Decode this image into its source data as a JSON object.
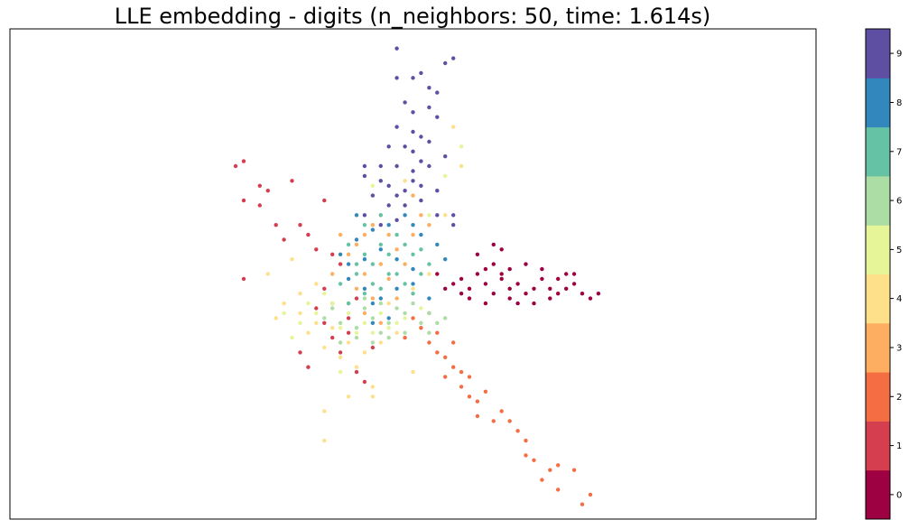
{
  "chart_data": {
    "type": "scatter",
    "title": "LLE embedding - digits (n_neighbors: 50, time: 1.614s)",
    "xlabel": "",
    "ylabel": "",
    "xlim": [
      0,
      1
    ],
    "ylim": [
      0,
      1
    ],
    "grid": false,
    "x_ticks_visible": false,
    "y_ticks_visible": false,
    "colormap": "Spectral",
    "colorbar": {
      "ticks": [
        "0",
        "1",
        "2",
        "3",
        "4",
        "5",
        "6",
        "7",
        "8",
        "9"
      ],
      "colors": [
        "#9e0142",
        "#d53e4f",
        "#f46d43",
        "#fdae61",
        "#fee08b",
        "#e6f598",
        "#abdda4",
        "#66c2a5",
        "#3288bd",
        "#5e4fa2"
      ]
    },
    "series": [
      {
        "digit": 0,
        "color": "#9e0142",
        "points": [
          [
            0.55,
            0.48
          ],
          [
            0.56,
            0.49
          ],
          [
            0.57,
            0.47
          ],
          [
            0.58,
            0.5
          ],
          [
            0.59,
            0.48
          ],
          [
            0.6,
            0.46
          ],
          [
            0.61,
            0.49
          ],
          [
            0.62,
            0.47
          ],
          [
            0.63,
            0.48
          ],
          [
            0.64,
            0.46
          ],
          [
            0.65,
            0.47
          ],
          [
            0.66,
            0.49
          ],
          [
            0.67,
            0.47
          ],
          [
            0.68,
            0.46
          ],
          [
            0.69,
            0.47
          ],
          [
            0.7,
            0.48
          ],
          [
            0.71,
            0.46
          ],
          [
            0.72,
            0.45
          ],
          [
            0.54,
            0.47
          ],
          [
            0.53,
            0.5
          ],
          [
            0.6,
            0.52
          ],
          [
            0.62,
            0.51
          ],
          [
            0.58,
            0.54
          ],
          [
            0.6,
            0.56
          ],
          [
            0.61,
            0.55
          ],
          [
            0.63,
            0.44
          ],
          [
            0.65,
            0.44
          ],
          [
            0.67,
            0.45
          ],
          [
            0.69,
            0.5
          ],
          [
            0.64,
            0.52
          ],
          [
            0.57,
            0.45
          ],
          [
            0.59,
            0.44
          ],
          [
            0.56,
            0.46
          ],
          [
            0.62,
            0.45
          ],
          [
            0.66,
            0.51
          ],
          [
            0.68,
            0.49
          ],
          [
            0.7,
            0.5
          ],
          [
            0.73,
            0.46
          ],
          [
            0.59,
            0.51
          ],
          [
            0.61,
            0.5
          ]
        ]
      },
      {
        "digit": 1,
        "color": "#d53e4f",
        "points": [
          [
            0.28,
            0.72
          ],
          [
            0.29,
            0.73
          ],
          [
            0.31,
            0.68
          ],
          [
            0.32,
            0.67
          ],
          [
            0.29,
            0.65
          ],
          [
            0.35,
            0.69
          ],
          [
            0.39,
            0.65
          ],
          [
            0.33,
            0.6
          ],
          [
            0.36,
            0.6
          ],
          [
            0.34,
            0.57
          ],
          [
            0.37,
            0.58
          ],
          [
            0.38,
            0.55
          ],
          [
            0.4,
            0.54
          ],
          [
            0.41,
            0.52
          ],
          [
            0.39,
            0.47
          ],
          [
            0.4,
            0.44
          ],
          [
            0.42,
            0.41
          ],
          [
            0.4,
            0.37
          ],
          [
            0.41,
            0.34
          ],
          [
            0.43,
            0.3
          ],
          [
            0.44,
            0.28
          ],
          [
            0.36,
            0.34
          ],
          [
            0.37,
            0.31
          ],
          [
            0.29,
            0.49
          ],
          [
            0.31,
            0.64
          ],
          [
            0.38,
            0.43
          ],
          [
            0.43,
            0.45
          ],
          [
            0.42,
            0.38
          ],
          [
            0.45,
            0.35
          ],
          [
            0.39,
            0.4
          ]
        ]
      },
      {
        "digit": 2,
        "color": "#f46d43",
        "points": [
          [
            0.52,
            0.36
          ],
          [
            0.53,
            0.34
          ],
          [
            0.54,
            0.33
          ],
          [
            0.55,
            0.31
          ],
          [
            0.56,
            0.3
          ],
          [
            0.57,
            0.29
          ],
          [
            0.56,
            0.27
          ],
          [
            0.57,
            0.25
          ],
          [
            0.58,
            0.24
          ],
          [
            0.58,
            0.21
          ],
          [
            0.6,
            0.2
          ],
          [
            0.61,
            0.22
          ],
          [
            0.62,
            0.2
          ],
          [
            0.63,
            0.18
          ],
          [
            0.64,
            0.16
          ],
          [
            0.64,
            0.13
          ],
          [
            0.65,
            0.12
          ],
          [
            0.67,
            0.1
          ],
          [
            0.66,
            0.08
          ],
          [
            0.68,
            0.06
          ],
          [
            0.68,
            0.11
          ],
          [
            0.7,
            0.1
          ],
          [
            0.72,
            0.05
          ],
          [
            0.71,
            0.03
          ],
          [
            0.51,
            0.39
          ],
          [
            0.53,
            0.38
          ],
          [
            0.55,
            0.36
          ],
          [
            0.54,
            0.29
          ],
          [
            0.59,
            0.26
          ],
          [
            0.5,
            0.41
          ],
          [
            0.52,
            0.42
          ],
          [
            0.49,
            0.37
          ]
        ]
      },
      {
        "digit": 3,
        "color": "#fdae61",
        "points": [
          [
            0.42,
            0.54
          ],
          [
            0.43,
            0.56
          ],
          [
            0.44,
            0.58
          ],
          [
            0.45,
            0.6
          ],
          [
            0.46,
            0.62
          ],
          [
            0.47,
            0.58
          ],
          [
            0.48,
            0.55
          ],
          [
            0.49,
            0.64
          ],
          [
            0.5,
            0.66
          ],
          [
            0.51,
            0.62
          ],
          [
            0.46,
            0.52
          ],
          [
            0.44,
            0.5
          ],
          [
            0.43,
            0.47
          ],
          [
            0.45,
            0.45
          ],
          [
            0.47,
            0.49
          ],
          [
            0.48,
            0.45
          ],
          [
            0.42,
            0.44
          ],
          [
            0.44,
            0.42
          ],
          [
            0.46,
            0.4
          ],
          [
            0.49,
            0.52
          ],
          [
            0.5,
            0.58
          ],
          [
            0.52,
            0.6
          ],
          [
            0.4,
            0.5
          ],
          [
            0.41,
            0.58
          ]
        ]
      },
      {
        "digit": 4,
        "color": "#fee08b",
        "points": [
          [
            0.34,
            0.44
          ],
          [
            0.36,
            0.42
          ],
          [
            0.38,
            0.4
          ],
          [
            0.4,
            0.39
          ],
          [
            0.42,
            0.36
          ],
          [
            0.44,
            0.34
          ],
          [
            0.46,
            0.36
          ],
          [
            0.48,
            0.38
          ],
          [
            0.36,
            0.46
          ],
          [
            0.38,
            0.48
          ],
          [
            0.37,
            0.38
          ],
          [
            0.39,
            0.35
          ],
          [
            0.41,
            0.33
          ],
          [
            0.43,
            0.31
          ],
          [
            0.45,
            0.27
          ],
          [
            0.42,
            0.25
          ],
          [
            0.39,
            0.22
          ],
          [
            0.45,
            0.25
          ],
          [
            0.5,
            0.47
          ],
          [
            0.52,
            0.5
          ],
          [
            0.54,
            0.62
          ],
          [
            0.56,
            0.72
          ],
          [
            0.55,
            0.8
          ],
          [
            0.49,
            0.69
          ],
          [
            0.33,
            0.41
          ],
          [
            0.32,
            0.5
          ],
          [
            0.35,
            0.53
          ],
          [
            0.39,
            0.16
          ],
          [
            0.47,
            0.44
          ],
          [
            0.5,
            0.3
          ]
        ]
      },
      {
        "digit": 5,
        "color": "#e6f598",
        "points": [
          [
            0.36,
            0.4
          ],
          [
            0.38,
            0.42
          ],
          [
            0.4,
            0.44
          ],
          [
            0.42,
            0.42
          ],
          [
            0.44,
            0.4
          ],
          [
            0.46,
            0.42
          ],
          [
            0.48,
            0.4
          ],
          [
            0.37,
            0.44
          ],
          [
            0.39,
            0.46
          ],
          [
            0.41,
            0.39
          ],
          [
            0.43,
            0.38
          ],
          [
            0.45,
            0.38
          ],
          [
            0.47,
            0.39
          ],
          [
            0.49,
            0.41
          ],
          [
            0.51,
            0.43
          ],
          [
            0.35,
            0.37
          ],
          [
            0.34,
            0.42
          ],
          [
            0.52,
            0.62
          ],
          [
            0.54,
            0.7
          ],
          [
            0.56,
            0.76
          ],
          [
            0.48,
            0.72
          ],
          [
            0.45,
            0.68
          ],
          [
            0.5,
            0.75
          ],
          [
            0.41,
            0.3
          ]
        ]
      },
      {
        "digit": 6,
        "color": "#abdda4",
        "points": [
          [
            0.39,
            0.41
          ],
          [
            0.41,
            0.4
          ],
          [
            0.43,
            0.39
          ],
          [
            0.45,
            0.41
          ],
          [
            0.47,
            0.4
          ],
          [
            0.49,
            0.42
          ],
          [
            0.51,
            0.4
          ],
          [
            0.52,
            0.42
          ],
          [
            0.4,
            0.43
          ],
          [
            0.42,
            0.44
          ],
          [
            0.44,
            0.43
          ],
          [
            0.46,
            0.44
          ],
          [
            0.48,
            0.43
          ],
          [
            0.5,
            0.44
          ],
          [
            0.53,
            0.4
          ],
          [
            0.43,
            0.37
          ],
          [
            0.45,
            0.36
          ],
          [
            0.47,
            0.37
          ],
          [
            0.49,
            0.38
          ],
          [
            0.41,
            0.36
          ],
          [
            0.52,
            0.38
          ],
          [
            0.54,
            0.41
          ],
          [
            0.44,
            0.45
          ],
          [
            0.46,
            0.38
          ]
        ]
      },
      {
        "digit": 7,
        "color": "#66c2a5",
        "points": [
          [
            0.41,
            0.48
          ],
          [
            0.43,
            0.5
          ],
          [
            0.45,
            0.52
          ],
          [
            0.47,
            0.5
          ],
          [
            0.49,
            0.48
          ],
          [
            0.51,
            0.5
          ],
          [
            0.44,
            0.54
          ],
          [
            0.46,
            0.56
          ],
          [
            0.48,
            0.58
          ],
          [
            0.42,
            0.56
          ],
          [
            0.44,
            0.6
          ],
          [
            0.46,
            0.62
          ],
          [
            0.5,
            0.54
          ],
          [
            0.52,
            0.52
          ],
          [
            0.42,
            0.44
          ],
          [
            0.44,
            0.46
          ],
          [
            0.46,
            0.47
          ],
          [
            0.48,
            0.5
          ],
          [
            0.5,
            0.46
          ],
          [
            0.43,
            0.52
          ],
          [
            0.47,
            0.54
          ],
          [
            0.49,
            0.56
          ],
          [
            0.51,
            0.55
          ],
          [
            0.45,
            0.48
          ]
        ]
      },
      {
        "digit": 8,
        "color": "#3288bd",
        "points": [
          [
            0.42,
            0.52
          ],
          [
            0.44,
            0.53
          ],
          [
            0.46,
            0.55
          ],
          [
            0.48,
            0.53
          ],
          [
            0.5,
            0.51
          ],
          [
            0.43,
            0.57
          ],
          [
            0.45,
            0.59
          ],
          [
            0.47,
            0.6
          ],
          [
            0.49,
            0.62
          ],
          [
            0.51,
            0.58
          ],
          [
            0.42,
            0.49
          ],
          [
            0.44,
            0.47
          ],
          [
            0.46,
            0.45
          ],
          [
            0.48,
            0.47
          ],
          [
            0.5,
            0.48
          ],
          [
            0.53,
            0.56
          ],
          [
            0.41,
            0.54
          ],
          [
            0.45,
            0.4
          ],
          [
            0.47,
            0.41
          ],
          [
            0.52,
            0.45
          ],
          [
            0.54,
            0.53
          ],
          [
            0.43,
            0.62
          ],
          [
            0.45,
            0.44
          ],
          [
            0.5,
            0.6
          ]
        ]
      },
      {
        "digit": 9,
        "color": "#5e4fa2",
        "points": [
          [
            0.48,
            0.96
          ],
          [
            0.51,
            0.91
          ],
          [
            0.48,
            0.9
          ],
          [
            0.5,
            0.9
          ],
          [
            0.55,
            0.94
          ],
          [
            0.54,
            0.93
          ],
          [
            0.52,
            0.88
          ],
          [
            0.49,
            0.85
          ],
          [
            0.5,
            0.83
          ],
          [
            0.52,
            0.84
          ],
          [
            0.53,
            0.82
          ],
          [
            0.48,
            0.8
          ],
          [
            0.5,
            0.79
          ],
          [
            0.51,
            0.78
          ],
          [
            0.47,
            0.76
          ],
          [
            0.49,
            0.76
          ],
          [
            0.5,
            0.75
          ],
          [
            0.52,
            0.72
          ],
          [
            0.46,
            0.72
          ],
          [
            0.48,
            0.72
          ],
          [
            0.5,
            0.71
          ],
          [
            0.47,
            0.68
          ],
          [
            0.49,
            0.67
          ],
          [
            0.51,
            0.68
          ],
          [
            0.45,
            0.66
          ],
          [
            0.47,
            0.64
          ],
          [
            0.49,
            0.64
          ],
          [
            0.51,
            0.65
          ],
          [
            0.53,
            0.62
          ],
          [
            0.55,
            0.62
          ],
          [
            0.44,
            0.62
          ],
          [
            0.46,
            0.6
          ],
          [
            0.48,
            0.61
          ],
          [
            0.44,
            0.72
          ],
          [
            0.54,
            0.74
          ],
          [
            0.52,
            0.77
          ],
          [
            0.51,
            0.73
          ],
          [
            0.46,
            0.69
          ],
          [
            0.48,
            0.66
          ],
          [
            0.5,
            0.69
          ],
          [
            0.53,
            0.67
          ],
          [
            0.55,
            0.6
          ],
          [
            0.44,
            0.7
          ],
          [
            0.53,
            0.87
          ]
        ]
      }
    ]
  }
}
